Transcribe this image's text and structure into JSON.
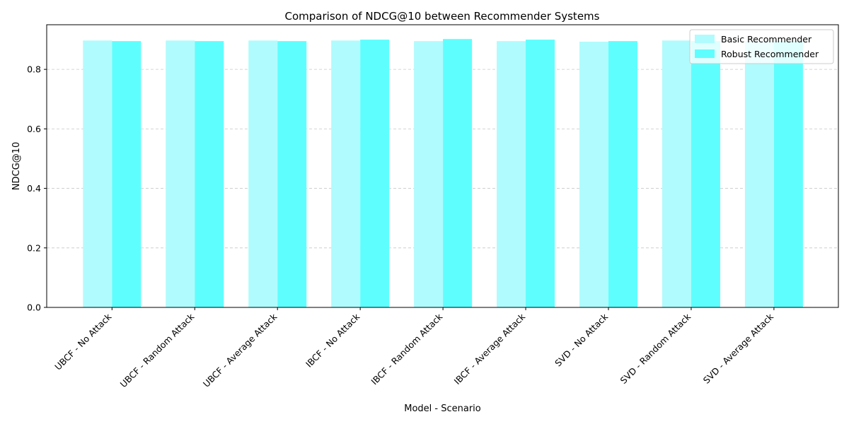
{
  "chart_data": {
    "type": "bar",
    "title": "Comparison of NDCG@10 between Recommender Systems",
    "xlabel": "Model - Scenario",
    "ylabel": "NDCG@10",
    "ylim": [
      0,
      0.95
    ],
    "yticks": [
      "0.0",
      "0.2",
      "0.4",
      "0.6",
      "0.8"
    ],
    "grid": "y-dashed",
    "legend_position": "top-right",
    "categories": [
      "UBCF - No Attack",
      "UBCF - Random Attack",
      "UBCF - Average Attack",
      "IBCF - No Attack",
      "IBCF - Random Attack",
      "IBCF - Average Attack",
      "SVD - No Attack",
      "SVD - Random Attack",
      "SVD - Average Attack"
    ],
    "series": [
      {
        "name": "Basic Recommender",
        "color": "#b0fbfd",
        "values": [
          0.897,
          0.897,
          0.897,
          0.897,
          0.895,
          0.895,
          0.893,
          0.897,
          0.895
        ]
      },
      {
        "name": "Robust Recommender",
        "color": "#5ffefe",
        "values": [
          0.895,
          0.895,
          0.895,
          0.9,
          0.902,
          0.9,
          0.895,
          0.895,
          0.895
        ]
      }
    ]
  }
}
